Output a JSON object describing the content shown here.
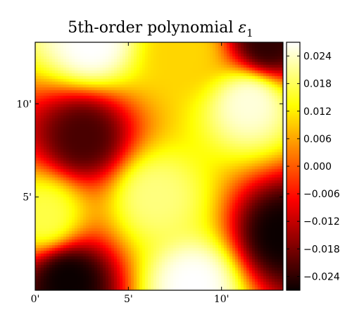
{
  "chart_data": {
    "type": "heatmap",
    "title": {
      "main": "5th-order polynomial ",
      "symbol": "ε",
      "subscript": "1"
    },
    "xlabel": "",
    "ylabel": "",
    "x_range": [
      0,
      13.3
    ],
    "y_range": [
      0,
      13.3
    ],
    "x_ticks": [
      {
        "value": 0,
        "label": "0'"
      },
      {
        "value": 5,
        "label": "5'"
      },
      {
        "value": 10,
        "label": "10'"
      }
    ],
    "y_ticks": [
      {
        "value": 5,
        "label": "5'"
      },
      {
        "value": 10,
        "label": "10'"
      }
    ],
    "colormap": "hot",
    "color_range": [
      -0.027,
      0.027
    ],
    "colorbar_ticks": [
      {
        "value": 0.024,
        "label": "0.024"
      },
      {
        "value": 0.018,
        "label": "0.018"
      },
      {
        "value": 0.012,
        "label": "0.012"
      },
      {
        "value": 0.006,
        "label": "0.006"
      },
      {
        "value": 0.0,
        "label": "0.000"
      },
      {
        "value": -0.006,
        "label": "−0.006"
      },
      {
        "value": -0.012,
        "label": "−0.012"
      },
      {
        "value": -0.018,
        "label": "−0.018"
      },
      {
        "value": -0.024,
        "label": "−0.024"
      }
    ],
    "field_features": [
      {
        "x": 2.6,
        "y": 8.2,
        "value": -0.022
      },
      {
        "x": 1.8,
        "y": 0.5,
        "value": -0.027
      },
      {
        "x": 13.3,
        "y": 3.0,
        "value": -0.027
      },
      {
        "x": 12.5,
        "y": 13.3,
        "value": -0.024
      },
      {
        "x": 3.0,
        "y": 13.3,
        "value": 0.027
      },
      {
        "x": 8.5,
        "y": 0.3,
        "value": 0.027
      },
      {
        "x": 11.5,
        "y": 10.0,
        "value": 0.025
      },
      {
        "x": 8.0,
        "y": 12.8,
        "value": 0.01
      },
      {
        "x": 6.5,
        "y": 5.0,
        "value": 0.02
      },
      {
        "x": 0.5,
        "y": 4.0,
        "value": 0.017
      }
    ],
    "grid": false,
    "colorbar": "right"
  }
}
